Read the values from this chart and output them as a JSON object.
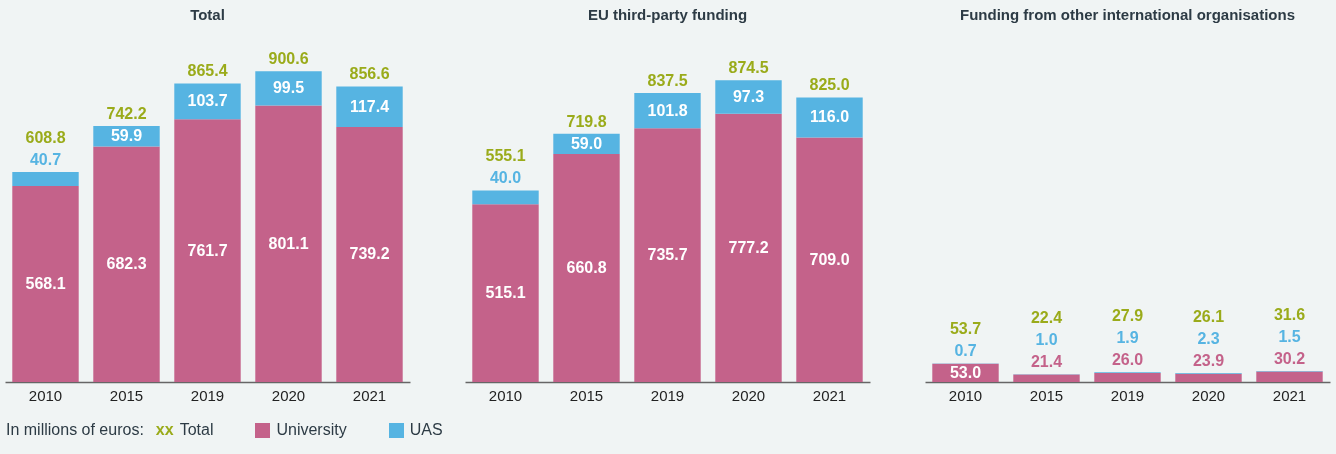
{
  "chart_data": [
    {
      "type": "bar",
      "title": "Total",
      "categories": [
        "2010",
        "2015",
        "2019",
        "2020",
        "2021"
      ],
      "stacked": true,
      "tick_labels": "x",
      "series": [
        {
          "name": "University",
          "color": "#c4628a",
          "values": [
            568.1,
            682.3,
            761.7,
            801.1,
            739.2
          ],
          "value_labels": [
            "568.1",
            "682.3",
            "761.7",
            "801.1",
            "739.2"
          ]
        },
        {
          "name": "UAS",
          "color": "#56b4e2",
          "values": [
            40.7,
            59.9,
            103.7,
            99.5,
            117.4
          ],
          "value_labels": [
            "40.7",
            "59.9",
            "103.7",
            "99.5",
            "117.4"
          ]
        }
      ],
      "totals": [
        "608.8",
        "742.2",
        "865.4",
        "900.6",
        "856.6"
      ],
      "legend": "bottom",
      "legend_title": "In millions of euros:",
      "annotations": [
        "xx Total"
      ]
    },
    {
      "type": "bar",
      "title": "EU third-party funding",
      "categories": [
        "2010",
        "2015",
        "2019",
        "2020",
        "2021"
      ],
      "stacked": true,
      "tick_labels": "x",
      "series": [
        {
          "color": "#c4628a",
          "values": [
            515.1,
            660.8,
            735.7,
            777.2,
            709.0
          ],
          "value_labels": [
            "515.1",
            "660.8",
            "735.7",
            "777.2",
            "709.0"
          ]
        },
        {
          "color": "#56b4e2",
          "values": [
            40.0,
            59.0,
            101.8,
            97.3,
            116.0
          ],
          "value_labels": [
            "40.0",
            "59.0",
            "101.8",
            "97.3",
            "116.0"
          ]
        }
      ],
      "totals": [
        "555.1",
        "719.8",
        "837.5",
        "874.5",
        "825.0"
      ]
    },
    {
      "type": "bar",
      "title": "Funding from other international organisations",
      "categories": [
        "2010",
        "2015",
        "2019",
        "2020",
        "2021"
      ],
      "stacked": true,
      "tick_labels": "x",
      "series": [
        {
          "color": "#c4628a",
          "values": [
            53.0,
            21.4,
            26.0,
            23.9,
            30.2
          ],
          "value_labels": [
            "53.0",
            "21.4",
            "26.0",
            "23.9",
            "30.2"
          ]
        },
        {
          "color": "#56b4e2",
          "values": [
            0.7,
            1.0,
            1.9,
            2.3,
            1.5
          ],
          "value_labels": [
            "0.7",
            "1.0",
            "1.9",
            "2.3",
            "1.5"
          ]
        }
      ],
      "totals": [
        "53.7",
        "22.4",
        "27.9",
        "26.1",
        "31.6"
      ]
    }
  ]
}
